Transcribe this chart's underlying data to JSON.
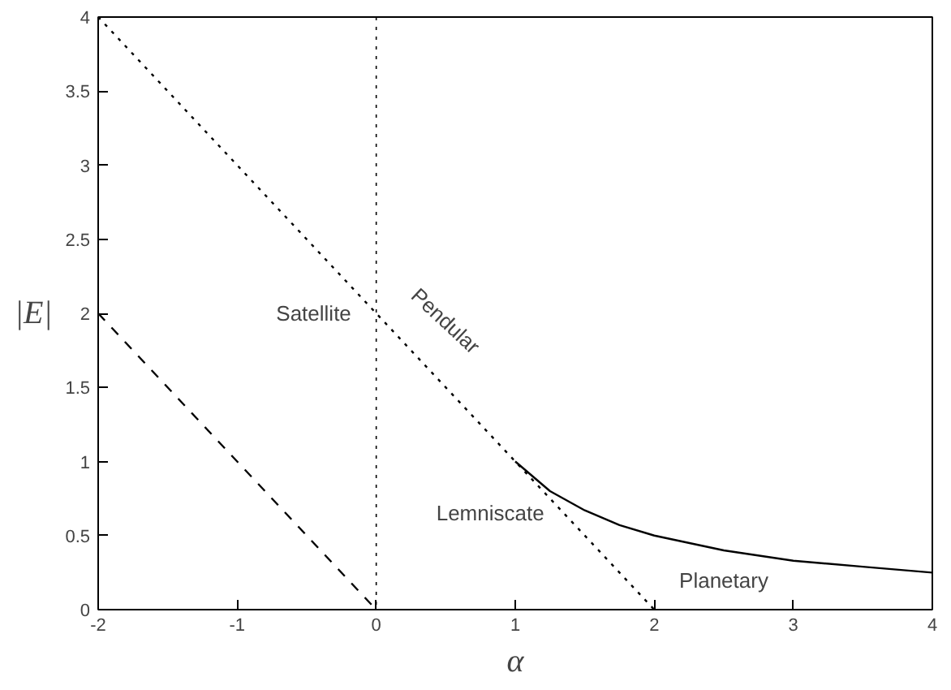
{
  "chart_data": {
    "type": "line",
    "xlabel": "α",
    "ylabel": "|E|",
    "xlim": [
      -2,
      4
    ],
    "ylim": [
      0,
      4
    ],
    "xticks": [
      -2,
      -1,
      0,
      1,
      2,
      3,
      4
    ],
    "yticks": [
      0,
      0.5,
      1,
      1.5,
      2,
      2.5,
      3,
      3.5,
      4
    ],
    "grid": false,
    "marker": "none",
    "series": [
      {
        "x": [
          -2,
          2
        ],
        "values": [
          4,
          0
        ],
        "color": "#000000",
        "line_style": "dotted"
      },
      {
        "x": [
          -2,
          0
        ],
        "values": [
          2,
          0
        ],
        "color": "#000000",
        "line_style": "dashed"
      },
      {
        "x": [
          1,
          1.25,
          1.5,
          1.75,
          2,
          2.5,
          3,
          3.5,
          4
        ],
        "values": [
          1,
          0.8,
          0.67,
          0.57,
          0.5,
          0.4,
          0.33,
          0.29,
          0.25
        ],
        "color": "#000000",
        "line_style": "solid"
      }
    ],
    "ref_lines": [
      {
        "axis": "x",
        "value": 0,
        "label": null,
        "color": "#000000",
        "line_style": "dotted"
      }
    ],
    "annotations": [
      "Satellite",
      "Pendular",
      "Lemniscate",
      "Planetary"
    ]
  }
}
